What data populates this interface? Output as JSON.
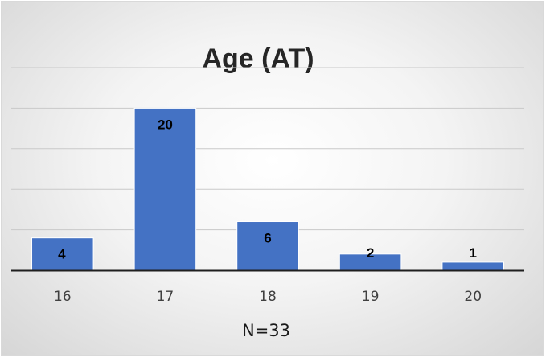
{
  "chart_data": {
    "type": "bar",
    "title": "Age (AT)",
    "categories": [
      "16",
      "17",
      "18",
      "19",
      "20"
    ],
    "values": [
      4,
      20,
      6,
      2,
      1
    ],
    "data_labels": [
      "4",
      "20",
      "6",
      "2",
      "1"
    ],
    "xlabel": "",
    "ylabel": "",
    "ylim": [
      0,
      25
    ],
    "grid": true,
    "y_axis_labels_shown": false,
    "legend": "none",
    "annotation": "N=33",
    "bar_color": "#4472c4"
  }
}
